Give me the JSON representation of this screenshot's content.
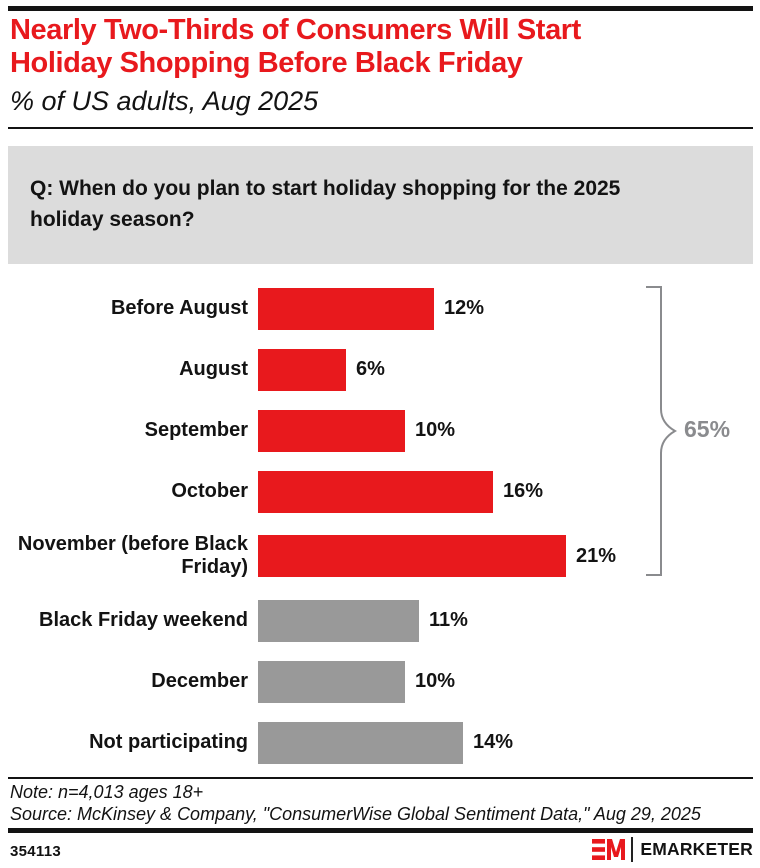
{
  "header": {
    "title_line1": "Nearly Two-Thirds of Consumers Will Start",
    "title_line2": "Holiday Shopping Before Black Friday",
    "subtitle": "% of US adults, Aug 2025"
  },
  "question": {
    "text": "Q: When do you plan to start holiday shopping for the 2025 holiday season?"
  },
  "chart_data": {
    "type": "bar",
    "orientation": "horizontal",
    "title": "Nearly Two-Thirds of Consumers Will Start Holiday Shopping Before Black Friday",
    "subtitle": "% of US adults, Aug 2025",
    "xlabel": "",
    "ylabel": "",
    "axis_hidden": true,
    "grid": false,
    "unit": "%",
    "categories": [
      "Before August",
      "August",
      "September",
      "October",
      "November (before Black Friday)",
      "Black Friday weekend",
      "December",
      "Not participating"
    ],
    "values": [
      12,
      6,
      10,
      16,
      21,
      11,
      10,
      14
    ],
    "value_labels": [
      "12%",
      "6%",
      "10%",
      "16%",
      "21%",
      "11%",
      "10%",
      "14%"
    ],
    "bar_colors": [
      "#e8191d",
      "#e8191d",
      "#e8191d",
      "#e8191d",
      "#e8191d",
      "#999999",
      "#999999",
      "#999999"
    ],
    "annotation": {
      "label": "65%",
      "spans_categories": [
        "Before August",
        "August",
        "September",
        "October",
        "November (before Black Friday)"
      ],
      "color": "#8a8b8e"
    }
  },
  "footer": {
    "note": "Note: n=4,013 ages 18+",
    "source": "Source: McKinsey & Company, \"ConsumerWise Global Sentiment Data,\" Aug 29, 2025",
    "chart_id": "354113",
    "brand_name": "EMARKETER"
  },
  "colors": {
    "highlight_red": "#e8191d",
    "muted_gray": "#999999",
    "question_box_bg": "#dcdcdc",
    "brace_gray": "#8a8b8e",
    "text_black": "#131313"
  }
}
